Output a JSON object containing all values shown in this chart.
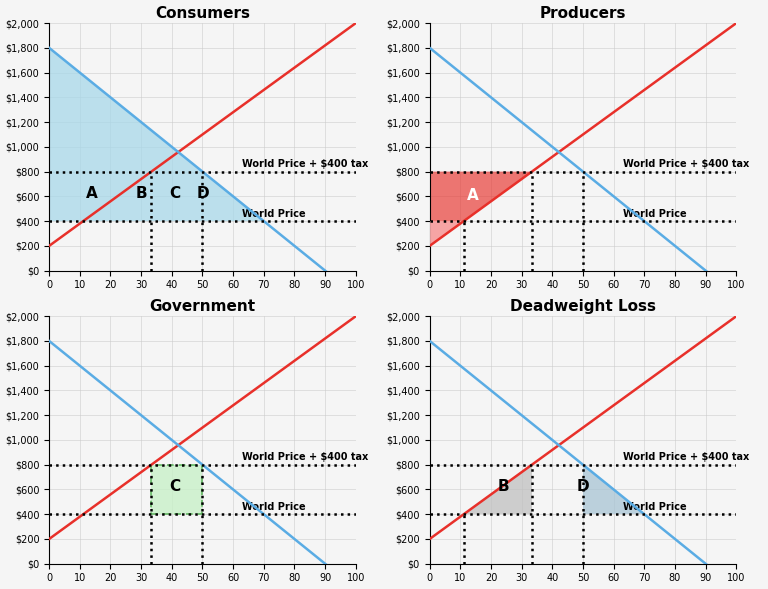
{
  "titles": [
    "Consumers",
    "Producers",
    "Government",
    "Deadweight Loss"
  ],
  "world_price": 400,
  "tariff_price": 800,
  "supply_intercept": 200,
  "supply_slope": 18,
  "demand_intercept": 1800,
  "demand_slope": -20,
  "x_min": 0,
  "x_max": 100,
  "y_min": 0,
  "y_max": 2000,
  "yticks": [
    0,
    200,
    400,
    600,
    800,
    1000,
    1200,
    1400,
    1600,
    1800,
    2000
  ],
  "ytick_labels": [
    "$0",
    "$200",
    "$400",
    "$600",
    "$800",
    "$1,000",
    "$1,200",
    "$1,400",
    "$1,600",
    "$1,800",
    "$2,000"
  ],
  "xticks": [
    0,
    10,
    20,
    30,
    40,
    50,
    60,
    70,
    80,
    90,
    100
  ],
  "supply_color": "#e8302a",
  "demand_color": "#5aace4",
  "world_price_label": "World Price",
  "tariff_label": "World Price + $400 tax",
  "consumer_fill_color": "#a8d8ea",
  "producer_gain_color": "#e8302a",
  "producer_world_color": "#f8aaaa",
  "gov_fill_color": "#c8f0c8",
  "dwl_b_color": "#c0c0c0",
  "dwl_d_color": "#a8c4d4",
  "title_fontsize": 11,
  "annotation_fontsize": 11,
  "tick_fontsize": 7,
  "label_fontsize": 7,
  "background_color": "#f5f5f5",
  "grid_color": "#cccccc"
}
